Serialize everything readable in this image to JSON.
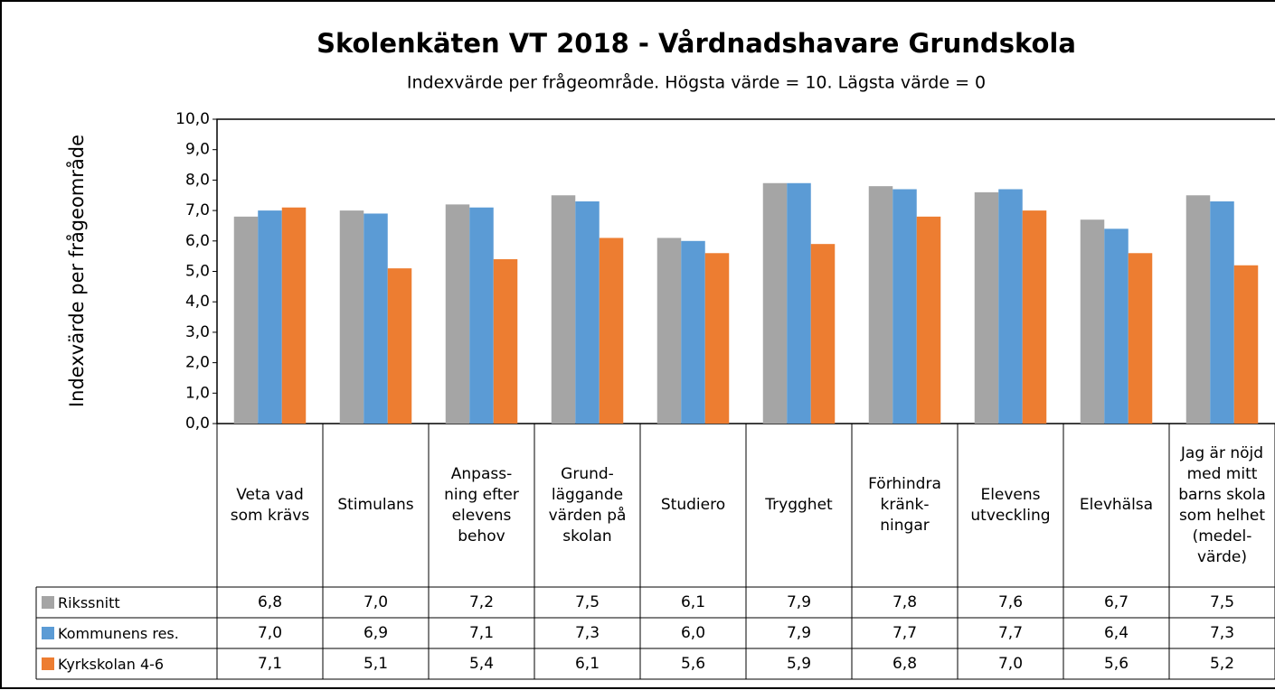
{
  "chart_data": {
    "type": "bar",
    "title": "Skolenkäten VT 2018 - Vårdnadshavare Grundskola",
    "subtitle": "Indexvärde per frågeområde. Högsta värde = 10. Lägsta värde = 0",
    "y_label": "Indexvärde per frågeområde",
    "categories": [
      "Veta vad\nsom krävs",
      "Stimulans",
      "Anpass-\nning efter\nelevens\nbehov",
      "Grund-\nläggande\nvärden på\nskolan",
      "Studiero",
      "Trygghet",
      "Förhindra\nkränk-\nningar",
      "Elevens\nutveckling",
      "Elevhälsa",
      "Jag är nöjd\nmed mitt\nbarns skola\nsom helhet\n(medel-\nvärde)"
    ],
    "series": [
      {
        "name": "Rikssnitt",
        "color": "#a5a5a5",
        "values": [
          6.8,
          7.0,
          7.2,
          7.5,
          6.1,
          7.9,
          7.8,
          7.6,
          6.7,
          7.5
        ],
        "value_labels": [
          "6,8",
          "7,0",
          "7,2",
          "7,5",
          "6,1",
          "7,9",
          "7,8",
          "7,6",
          "6,7",
          "7,5"
        ]
      },
      {
        "name": "Kommunens res.",
        "color": "#5b9bd5",
        "values": [
          7.0,
          6.9,
          7.1,
          7.3,
          6.0,
          7.9,
          7.7,
          7.7,
          6.4,
          7.3
        ],
        "value_labels": [
          "7,0",
          "6,9",
          "7,1",
          "7,3",
          "6,0",
          "7,9",
          "7,7",
          "7,7",
          "6,4",
          "7,3"
        ]
      },
      {
        "name": "Kyrkskolan 4-6",
        "color": "#ed7d31",
        "values": [
          7.1,
          5.1,
          5.4,
          6.1,
          5.6,
          5.9,
          6.8,
          7.0,
          5.6,
          5.2
        ],
        "value_labels": [
          "7,1",
          "5,1",
          "5,4",
          "6,1",
          "5,6",
          "5,9",
          "6,8",
          "7,0",
          "5,6",
          "5,2"
        ]
      }
    ],
    "ylim": [
      0,
      10
    ],
    "yticks": [
      {
        "value": 0,
        "label": "0,0"
      },
      {
        "value": 1,
        "label": "1,0"
      },
      {
        "value": 2,
        "label": "2,0"
      },
      {
        "value": 3,
        "label": "3,0"
      },
      {
        "value": 4,
        "label": "4,0"
      },
      {
        "value": 5,
        "label": "5,0"
      },
      {
        "value": 6,
        "label": "6,0"
      },
      {
        "value": 7,
        "label": "7,0"
      },
      {
        "value": 8,
        "label": "8,0"
      },
      {
        "value": 9,
        "label": "9,0"
      },
      {
        "value": 10,
        "label": "10,0"
      }
    ],
    "grid": false
  }
}
